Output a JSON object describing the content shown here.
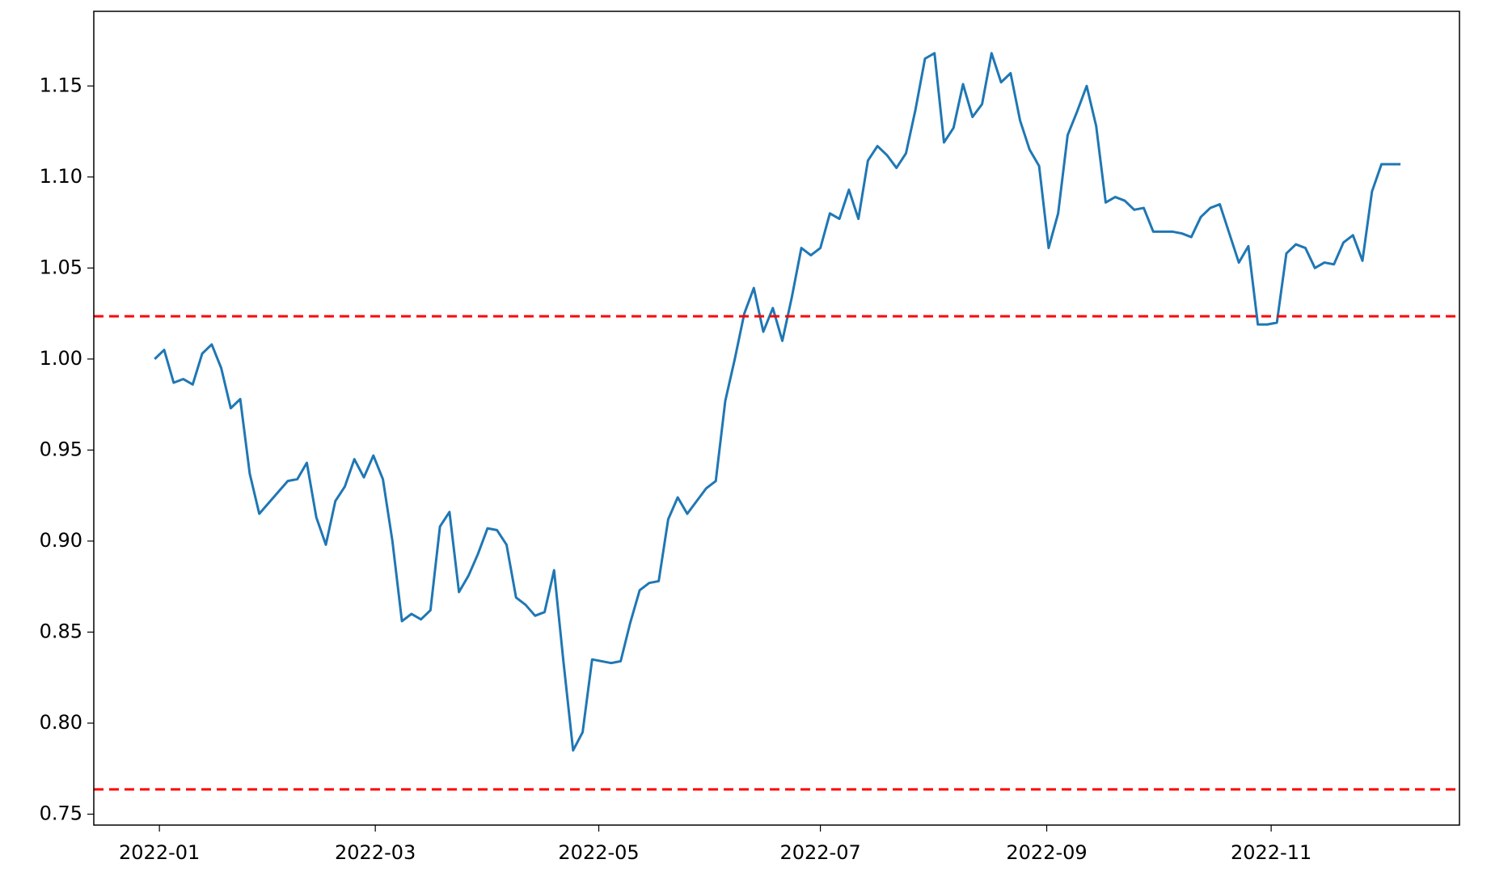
{
  "chart_data": {
    "type": "line",
    "series": [
      {
        "color": "#1f77b4",
        "values": [
          1.0,
          1.005,
          0.987,
          0.989,
          0.986,
          1.003,
          1.008,
          0.995,
          0.973,
          0.978,
          0.937,
          0.915,
          0.921,
          0.927,
          0.933,
          0.934,
          0.943,
          0.913,
          0.898,
          0.922,
          0.93,
          0.945,
          0.935,
          0.947,
          0.934,
          0.9,
          0.856,
          0.86,
          0.857,
          0.862,
          0.908,
          0.916,
          0.872,
          0.881,
          0.893,
          0.907,
          0.906,
          0.898,
          0.869,
          0.865,
          0.859,
          0.861,
          0.884,
          0.833,
          0.785,
          0.795,
          0.835,
          0.834,
          0.833,
          0.834,
          0.855,
          0.873,
          0.877,
          0.878,
          0.912,
          0.924,
          0.915,
          0.922,
          0.929,
          0.933,
          0.977,
          1.0,
          1.025,
          1.039,
          1.015,
          1.028,
          1.01,
          1.034,
          1.061,
          1.057,
          1.061,
          1.08,
          1.077,
          1.093,
          1.077,
          1.109,
          1.117,
          1.112,
          1.105,
          1.113,
          1.137,
          1.165,
          1.168,
          1.119,
          1.127,
          1.151,
          1.133,
          1.14,
          1.168,
          1.152,
          1.157,
          1.131,
          1.115,
          1.106,
          1.061,
          1.08,
          1.123,
          1.136,
          1.15,
          1.128,
          1.086,
          1.089,
          1.087,
          1.082,
          1.083,
          1.07,
          1.07,
          1.07,
          1.069,
          1.067,
          1.078,
          1.083,
          1.085,
          1.069,
          1.053,
          1.062,
          1.019,
          1.019,
          1.02,
          1.058,
          1.063,
          1.061,
          1.05,
          1.053,
          1.052,
          1.064,
          1.068,
          1.054,
          1.092,
          1.107,
          1.107,
          1.107
        ]
      }
    ],
    "hlines": [
      {
        "value": 1.0235,
        "color": "#ff0000"
      },
      {
        "value": 0.7636,
        "color": "#ff0000"
      }
    ],
    "xlim": [
      -6.4,
      137.2
    ],
    "xticks": [
      {
        "value": 0.5,
        "label": "2022-01"
      },
      {
        "value": 23.2,
        "label": "2022-03"
      },
      {
        "value": 46.7,
        "label": "2022-05"
      },
      {
        "value": 70,
        "label": "2022-07"
      },
      {
        "value": 93.8,
        "label": "2022-09"
      },
      {
        "value": 117.4,
        "label": "2022-11"
      }
    ],
    "ylim": [
      0.744,
      1.191
    ],
    "yticks": [
      {
        "value": 0.75,
        "label": "0.75"
      },
      {
        "value": 0.8,
        "label": "0.80"
      },
      {
        "value": 0.85,
        "label": "0.85"
      },
      {
        "value": 0.9,
        "label": "0.90"
      },
      {
        "value": 0.95,
        "label": "0.95"
      },
      {
        "value": 1.0,
        "label": "1.00"
      },
      {
        "value": 1.05,
        "label": "1.05"
      },
      {
        "value": 1.1,
        "label": "1.10"
      },
      {
        "value": 1.15,
        "label": "1.15"
      }
    ],
    "grid": false
  }
}
